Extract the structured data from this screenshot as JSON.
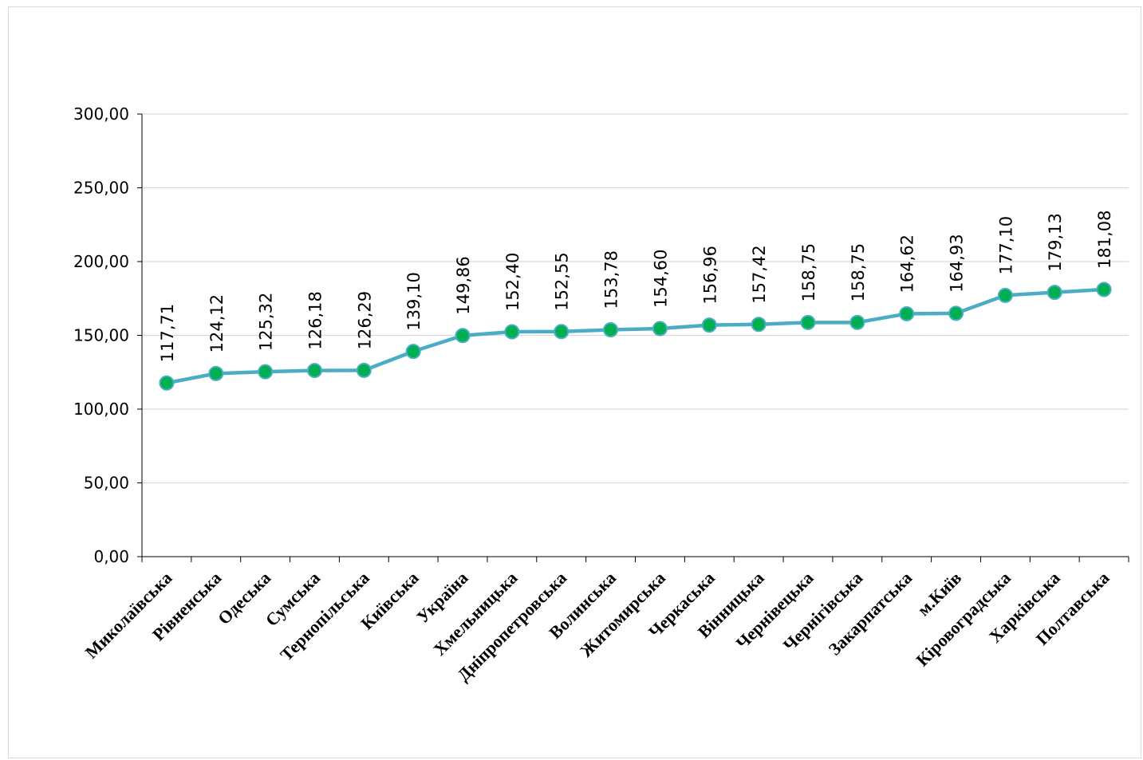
{
  "chart_data": {
    "type": "line",
    "title": "",
    "xlabel": "",
    "ylabel": "",
    "ylim": [
      0,
      300
    ],
    "yticks": [
      "0,00",
      "50,00",
      "100,00",
      "150,00",
      "200,00",
      "250,00",
      "300,00"
    ],
    "ytick_values": [
      0,
      50,
      100,
      150,
      200,
      250,
      300
    ],
    "grid": true,
    "legend": "none",
    "categories": [
      "Миколаївська",
      "Рівненська",
      "Одеська",
      "Сумська",
      "Тернопільська",
      "Київська",
      "Україна",
      "Хмельницька",
      "Дніпропетровська",
      "Волинська",
      "Житомирська",
      "Черкаська",
      "Вінницька",
      "Чернівецька",
      "Чернігівська",
      "Закарпатська",
      "м.Київ",
      "Кіровоградська",
      "Харківська",
      "Полтавська"
    ],
    "series": [
      {
        "values": [
          117.71,
          124.12,
          125.32,
          126.18,
          126.29,
          139.1,
          149.86,
          152.4,
          152.55,
          153.78,
          154.6,
          156.96,
          157.42,
          158.75,
          158.75,
          164.62,
          164.93,
          177.1,
          179.13,
          181.08
        ],
        "data_labels": [
          "117,71",
          "124,12",
          "125,32",
          "126,18",
          "126,29",
          "139,10",
          "149,86",
          "152,40",
          "152,55",
          "153,78",
          "154,60",
          "156,96",
          "157,42",
          "158,75",
          "158,75",
          "164,62",
          "164,93",
          "177,10",
          "179,13",
          "181,08"
        ],
        "line_color": "#4bacc6",
        "marker_color": "#00b050",
        "highlight_index": 6,
        "highlight_label_color": "#ff0000"
      }
    ],
    "colors": {
      "grid": "#d9d9d9",
      "axis": "#000000",
      "label": "#000000"
    }
  }
}
